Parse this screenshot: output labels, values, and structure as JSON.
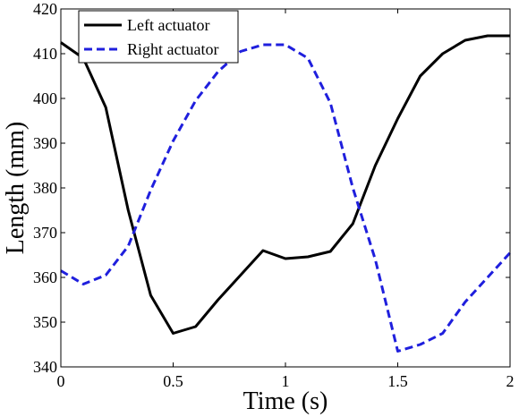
{
  "chart_data": {
    "type": "line",
    "title": "",
    "xlabel": "Time (s)",
    "ylabel": "Length (mm)",
    "xlim": [
      0,
      2
    ],
    "ylim": [
      340,
      420
    ],
    "xticks": [
      0,
      0.5,
      1,
      1.5,
      2
    ],
    "xtick_labels": [
      "0",
      "0.5",
      "1",
      "1.5",
      "2"
    ],
    "yticks": [
      340,
      350,
      360,
      370,
      380,
      390,
      400,
      410,
      420
    ],
    "ytick_labels": [
      "340",
      "350",
      "360",
      "370",
      "380",
      "390",
      "400",
      "410",
      "420"
    ],
    "grid": false,
    "legend_position": "top-left",
    "series": [
      {
        "name": "Left actuator",
        "color": "#000000",
        "style": "solid",
        "x": [
          0,
          0.1,
          0.2,
          0.3,
          0.4,
          0.5,
          0.6,
          0.7,
          0.8,
          0.9,
          1.0,
          1.1,
          1.2,
          1.3,
          1.4,
          1.5,
          1.6,
          1.7,
          1.8,
          1.9,
          2.0
        ],
        "y": [
          412.5,
          409,
          398,
          375,
          356,
          347.5,
          349,
          355,
          360.5,
          366,
          364.2,
          364.6,
          365.8,
          372,
          385,
          395.5,
          405,
          410,
          413,
          414,
          414
        ]
      },
      {
        "name": "Right actuator",
        "color": "#1f1fdd",
        "style": "dashed",
        "x": [
          0,
          0.1,
          0.2,
          0.3,
          0.4,
          0.5,
          0.6,
          0.7,
          0.8,
          0.9,
          1.0,
          1.1,
          1.2,
          1.3,
          1.4,
          1.5,
          1.6,
          1.7,
          1.8,
          1.9,
          2.0
        ],
        "y": [
          361.5,
          358.5,
          360.5,
          367,
          379.5,
          390.5,
          399.5,
          406,
          410.5,
          412,
          412,
          409,
          399,
          380,
          364,
          343.5,
          345,
          347.5,
          354.5,
          360,
          365.5
        ]
      }
    ]
  }
}
